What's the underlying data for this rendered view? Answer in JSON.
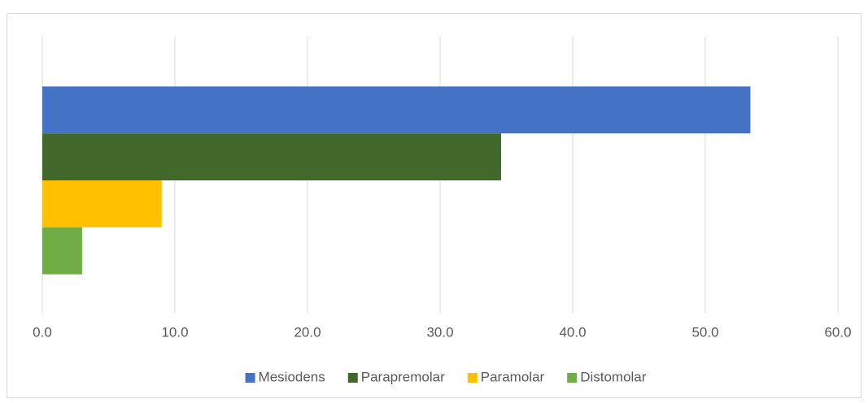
{
  "chart_data": {
    "type": "hbar",
    "categories": [
      null
    ],
    "series": [
      {
        "name": "Mesiodens",
        "color": "#4472c4",
        "values": [
          53.4
        ]
      },
      {
        "name": "Parapremolar",
        "color": "#43682b",
        "values": [
          34.6
        ]
      },
      {
        "name": "Paramolar",
        "color": "#ffc000",
        "values": [
          9.0
        ]
      },
      {
        "name": "Distomolar",
        "color": "#70ad47",
        "values": [
          3.0
        ]
      }
    ],
    "xlim": [
      0,
      60
    ],
    "xticks": [
      {
        "value": 0,
        "label": "0.0"
      },
      {
        "value": 10,
        "label": "10.0"
      },
      {
        "value": 20,
        "label": "20.0"
      },
      {
        "value": 30,
        "label": "30.0"
      },
      {
        "value": 40,
        "label": "40.0"
      },
      {
        "value": 50,
        "label": "50.0"
      },
      {
        "value": 60,
        "label": "60.0"
      }
    ],
    "grid": true,
    "legend": "bottom"
  }
}
